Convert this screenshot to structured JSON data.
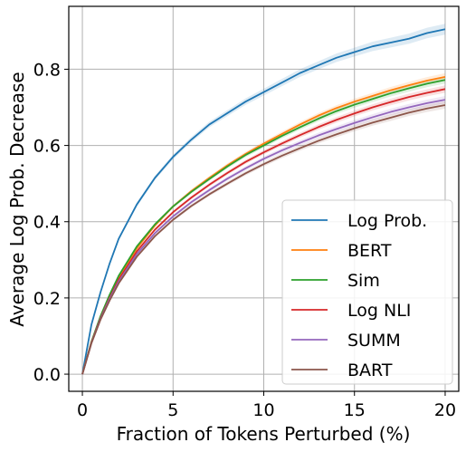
{
  "chart_data": {
    "type": "line",
    "xlabel": "Fraction of Tokens Perturbed (%)",
    "ylabel": "Average Log Prob. Decrease",
    "xlim": [
      -0.75,
      20.75
    ],
    "ylim": [
      -0.045,
      0.965
    ],
    "xticks": [
      0,
      5,
      10,
      15,
      20
    ],
    "yticks": [
      0.0,
      0.2,
      0.4,
      0.6,
      0.8
    ],
    "xtick_labels": [
      "0",
      "5",
      "10",
      "15",
      "20"
    ],
    "ytick_labels": [
      "0.0",
      "0.2",
      "0.4",
      "0.6",
      "0.8"
    ],
    "grid": true,
    "legend_position": "lower-right",
    "x": [
      0,
      0.5,
      1,
      1.5,
      2,
      3,
      4,
      5,
      6,
      7,
      8,
      9,
      10,
      11,
      12,
      13,
      14,
      15,
      16,
      17,
      18,
      19,
      20
    ],
    "series": [
      {
        "name": "Log Prob.",
        "color": "#1f77b4",
        "values": [
          0.0,
          0.13,
          0.215,
          0.29,
          0.355,
          0.445,
          0.515,
          0.57,
          0.615,
          0.655,
          0.685,
          0.715,
          0.74,
          0.765,
          0.79,
          0.81,
          0.83,
          0.845,
          0.86,
          0.87,
          0.88,
          0.895,
          0.905
        ],
        "band": 0.012
      },
      {
        "name": "BERT",
        "color": "#ff7f0e",
        "values": [
          0.0,
          0.085,
          0.15,
          0.205,
          0.255,
          0.33,
          0.39,
          0.44,
          0.48,
          0.515,
          0.548,
          0.578,
          0.605,
          0.63,
          0.655,
          0.678,
          0.698,
          0.715,
          0.73,
          0.745,
          0.758,
          0.77,
          0.78
        ],
        "band": 0.008
      },
      {
        "name": "Sim",
        "color": "#2ca02c",
        "values": [
          0.0,
          0.085,
          0.152,
          0.208,
          0.258,
          0.335,
          0.393,
          0.44,
          0.478,
          0.512,
          0.545,
          0.575,
          0.6,
          0.625,
          0.648,
          0.67,
          0.69,
          0.707,
          0.722,
          0.737,
          0.75,
          0.762,
          0.772
        ],
        "band": 0.008
      },
      {
        "name": "Log NLI",
        "color": "#d62728",
        "values": [
          0.0,
          0.083,
          0.147,
          0.2,
          0.248,
          0.322,
          0.379,
          0.425,
          0.463,
          0.497,
          0.528,
          0.557,
          0.582,
          0.605,
          0.627,
          0.648,
          0.667,
          0.684,
          0.7,
          0.714,
          0.727,
          0.738,
          0.748
        ],
        "band": 0.008
      },
      {
        "name": "SUMM",
        "color": "#9467bd",
        "values": [
          0.0,
          0.082,
          0.145,
          0.197,
          0.243,
          0.315,
          0.37,
          0.414,
          0.451,
          0.483,
          0.513,
          0.54,
          0.565,
          0.587,
          0.607,
          0.626,
          0.643,
          0.659,
          0.674,
          0.688,
          0.7,
          0.711,
          0.72
        ],
        "band": 0.008
      },
      {
        "name": "BART",
        "color": "#8c564b",
        "values": [
          0.0,
          0.081,
          0.143,
          0.193,
          0.238,
          0.308,
          0.362,
          0.405,
          0.441,
          0.472,
          0.5,
          0.527,
          0.551,
          0.573,
          0.593,
          0.612,
          0.629,
          0.645,
          0.66,
          0.673,
          0.686,
          0.697,
          0.706
        ],
        "band": 0.008
      }
    ]
  }
}
